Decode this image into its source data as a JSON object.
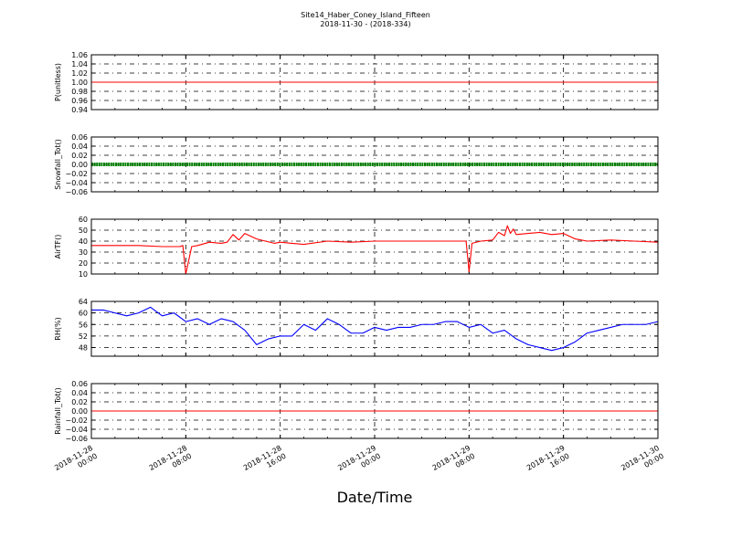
{
  "title": "Site14_Haber_Coney_Island_Fifteen",
  "subtitle": "2018-11-30 - (2018-334)",
  "xlabel": "Date/Time",
  "x_ticks": [
    "2018-11-28\n00:00",
    "2018-11-28\n08:00",
    "2018-11-28\n16:00",
    "2018-11-29\n00:00",
    "2018-11-29\n08:00",
    "2018-11-29\n16:00",
    "2018-11-30\n00:00"
  ],
  "chart_data": [
    {
      "type": "line",
      "ylabel": "P(unitless)",
      "ylim": [
        0.94,
        1.06
      ],
      "yticks": [
        "1.06",
        "1.04",
        "1.02",
        "1.00",
        "0.98",
        "0.96",
        "0.94"
      ],
      "grid": true,
      "color": "#ff0000",
      "marker": "none",
      "x": [
        "2018-11-28 00:00",
        "2018-11-30 00:00"
      ],
      "values": [
        1.0,
        1.0
      ]
    },
    {
      "type": "line",
      "ylabel": "Snowfall_Tot()",
      "ylim": [
        -0.06,
        0.06
      ],
      "yticks": [
        "0.06",
        "0.04",
        "0.02",
        "0.00",
        "−0.02",
        "−0.04",
        "−0.06"
      ],
      "grid": true,
      "color": "#008000",
      "marker": "dots",
      "x": [
        "2018-11-28 00:00",
        "2018-11-30 00:00"
      ],
      "values": [
        0.0,
        0.0
      ]
    },
    {
      "type": "line",
      "ylabel": "AirTF()",
      "ylim": [
        10,
        60
      ],
      "yticks": [
        "60",
        "50",
        "40",
        "30",
        "20",
        "10"
      ],
      "grid": true,
      "color": "#ff0000",
      "marker": "none",
      "x": [
        "2018-11-28 00:00",
        "2018-11-28 02:00",
        "2018-11-28 04:00",
        "2018-11-28 06:00",
        "2018-11-28 07:30",
        "2018-11-28 07:45",
        "2018-11-28 08:00",
        "2018-11-28 08:30",
        "2018-11-28 09:00",
        "2018-11-28 10:00",
        "2018-11-28 11:00",
        "2018-11-28 11:30",
        "2018-11-28 12:00",
        "2018-11-28 12:30",
        "2018-11-28 13:00",
        "2018-11-28 14:00",
        "2018-11-28 15:30",
        "2018-11-28 16:00",
        "2018-11-28 17:00",
        "2018-11-28 18:00",
        "2018-11-28 20:00",
        "2018-11-28 22:00",
        "2018-11-29 00:00",
        "2018-11-29 03:00",
        "2018-11-29 06:00",
        "2018-11-29 07:45",
        "2018-11-29 08:00",
        "2018-11-29 08:15",
        "2018-11-29 09:00",
        "2018-11-29 10:00",
        "2018-11-29 10:30",
        "2018-11-29 11:00",
        "2018-11-29 11:15",
        "2018-11-29 11:30",
        "2018-11-29 11:45",
        "2018-11-29 12:00",
        "2018-11-29 13:00",
        "2018-11-29 14:00",
        "2018-11-29 15:00",
        "2018-11-29 16:00",
        "2018-11-29 17:00",
        "2018-11-29 18:00",
        "2018-11-29 20:00",
        "2018-11-29 22:00",
        "2018-11-30 00:00"
      ],
      "values": [
        36,
        36,
        36,
        35,
        35,
        36,
        10,
        35,
        36,
        39,
        38,
        39,
        46,
        41,
        47,
        42,
        38,
        39,
        38,
        37,
        40,
        39,
        40,
        40,
        40,
        40,
        12,
        38,
        40,
        41,
        48,
        45,
        54,
        47,
        51,
        46,
        47,
        48,
        46,
        47,
        42,
        40,
        41,
        40,
        39
      ]
    },
    {
      "type": "line",
      "ylabel": "RH(%)",
      "ylim": [
        45,
        64
      ],
      "yticks": [
        "64",
        "60",
        "56",
        "52",
        "48"
      ],
      "grid": true,
      "color": "#0000ff",
      "marker": "none",
      "x": [
        "2018-11-28 00:00",
        "2018-11-28 01:00",
        "2018-11-28 02:00",
        "2018-11-28 03:00",
        "2018-11-28 04:00",
        "2018-11-28 05:00",
        "2018-11-28 06:00",
        "2018-11-28 07:00",
        "2018-11-28 08:00",
        "2018-11-28 09:00",
        "2018-11-28 10:00",
        "2018-11-28 11:00",
        "2018-11-28 12:00",
        "2018-11-28 13:00",
        "2018-11-28 14:00",
        "2018-11-28 15:00",
        "2018-11-28 16:00",
        "2018-11-28 17:00",
        "2018-11-28 18:00",
        "2018-11-28 19:00",
        "2018-11-28 20:00",
        "2018-11-28 21:00",
        "2018-11-28 22:00",
        "2018-11-28 23:00",
        "2018-11-29 00:00",
        "2018-11-29 01:00",
        "2018-11-29 02:00",
        "2018-11-29 03:00",
        "2018-11-29 04:00",
        "2018-11-29 05:00",
        "2018-11-29 06:00",
        "2018-11-29 07:00",
        "2018-11-29 08:00",
        "2018-11-29 09:00",
        "2018-11-29 10:00",
        "2018-11-29 11:00",
        "2018-11-29 12:00",
        "2018-11-29 13:00",
        "2018-11-29 14:00",
        "2018-11-29 15:00",
        "2018-11-29 16:00",
        "2018-11-29 17:00",
        "2018-11-29 18:00",
        "2018-11-29 19:00",
        "2018-11-29 20:00",
        "2018-11-29 21:00",
        "2018-11-29 22:00",
        "2018-11-29 23:00",
        "2018-11-30 00:00"
      ],
      "values": [
        61,
        61,
        60,
        59,
        60,
        62,
        59,
        60,
        57,
        58,
        56,
        58,
        57,
        54,
        49,
        51,
        52,
        52,
        56,
        54,
        58,
        56,
        53,
        53,
        55,
        54,
        55,
        55,
        56,
        56,
        57,
        57,
        55,
        56,
        53,
        54,
        51,
        49,
        48,
        47,
        48,
        50,
        53,
        54,
        55,
        56,
        56,
        56,
        57
      ]
    },
    {
      "type": "line",
      "ylabel": "Rainfall_Tot()",
      "ylim": [
        -0.06,
        0.06
      ],
      "yticks": [
        "0.06",
        "0.04",
        "0.02",
        "0.00",
        "−0.02",
        "−0.04",
        "−0.06"
      ],
      "grid": true,
      "color": "#ff0000",
      "marker": "none",
      "x": [
        "2018-11-28 00:00",
        "2018-11-30 00:00"
      ],
      "values": [
        0.0,
        0.0
      ]
    }
  ]
}
